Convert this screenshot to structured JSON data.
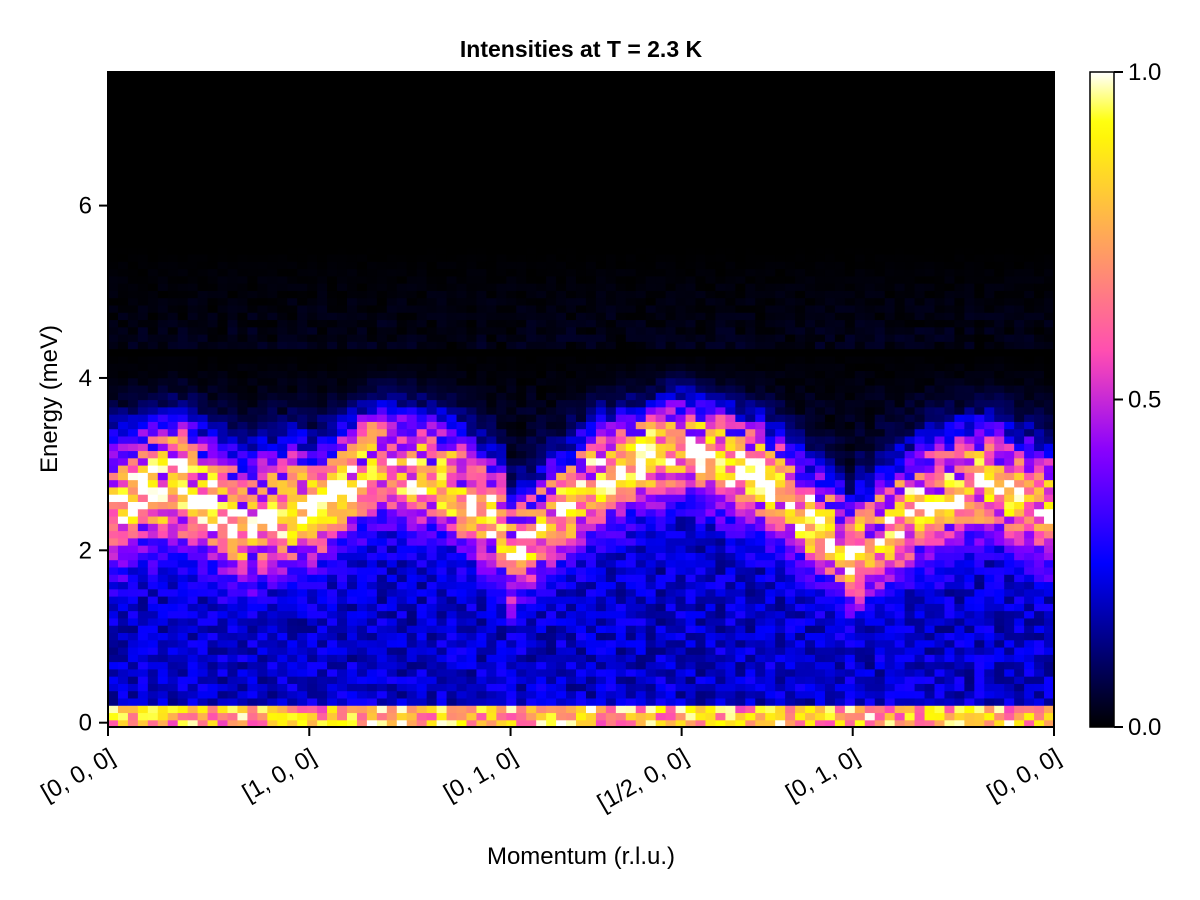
{
  "chart_data": {
    "type": "heatmap",
    "title": "Intensities at T = 2.3 K",
    "xlabel": "Momentum (r.l.u.)",
    "ylabel": "Energy (meV)",
    "x_ticks": [
      "[0, 0, 0]",
      "[1, 0, 0]",
      "[0, 1, 0]",
      "[1/2, 0, 0]",
      "[0, 1, 0]",
      "[0, 0, 0]"
    ],
    "x_tick_positions": [
      0,
      1,
      2,
      2.85,
      3.7,
      4.7
    ],
    "xlim": [
      0,
      4.7
    ],
    "y_ticks": [
      0,
      2,
      4,
      6
    ],
    "ylim": [
      -0.05,
      7.55
    ],
    "colorbar": {
      "colormap": "gnuplot2",
      "ticks": [
        "0.0",
        "0.5",
        "1.0"
      ],
      "tick_values": [
        0,
        0.5,
        1.0
      ],
      "range": [
        0,
        1
      ]
    },
    "grid": false,
    "band_segments": [
      {
        "from": 0.0,
        "to": 1.0,
        "centers": [
          2.6,
          2.9,
          2.4,
          2.6
        ],
        "halfwidth": 0.65,
        "strength": 1.0
      },
      {
        "from": 1.0,
        "to": 2.0,
        "centers": [
          2.5,
          3.1,
          2.9,
          2.3
        ],
        "halfwidth": 0.6,
        "strength": 0.95
      },
      {
        "from": 2.0,
        "to": 3.7,
        "centers": [
          2.0,
          2.9,
          3.3,
          2.9,
          2.0
        ],
        "halfwidth": 0.55,
        "strength": 1.0
      },
      {
        "from": 3.7,
        "to": 4.7,
        "centers": [
          2.0,
          2.6,
          2.9,
          2.5
        ],
        "halfwidth": 0.6,
        "strength": 0.95
      }
    ],
    "grid_resolution": {
      "n_momentum": 95,
      "n_energy": 90
    }
  }
}
